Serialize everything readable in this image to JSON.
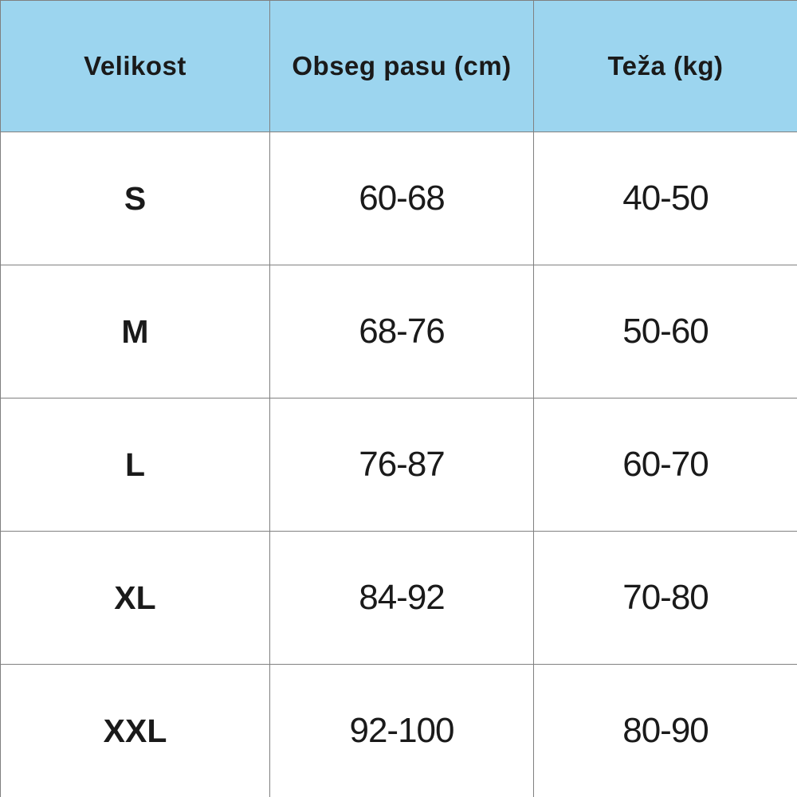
{
  "colors": {
    "header_bg": "#9cd5ef",
    "border": "#808080",
    "text": "#1a1a1a",
    "row_bg": "#ffffff"
  },
  "chart_data": {
    "type": "table",
    "title": "",
    "columns": [
      "Velikost",
      "Obseg pasu (cm)",
      "Teža (kg)"
    ],
    "rows": [
      [
        "S",
        "60-68",
        "40-50"
      ],
      [
        "M",
        "68-76",
        "50-60"
      ],
      [
        "L",
        "76-87",
        "60-70"
      ],
      [
        "XL",
        "84-92",
        "70-80"
      ],
      [
        "XXL",
        "92-100",
        "80-90"
      ]
    ]
  },
  "table": {
    "headers": {
      "size": "Velikost",
      "waist": "Obseg pasu (cm)",
      "weight": "Teža (kg)"
    },
    "rows": [
      {
        "size": "S",
        "waist": "60-68",
        "weight": "40-50"
      },
      {
        "size": "M",
        "waist": "68-76",
        "weight": "50-60"
      },
      {
        "size": "L",
        "waist": "76-87",
        "weight": "60-70"
      },
      {
        "size": "XL",
        "waist": "84-92",
        "weight": "70-80"
      },
      {
        "size": "XXL",
        "waist": "92-100",
        "weight": "80-90"
      }
    ]
  }
}
